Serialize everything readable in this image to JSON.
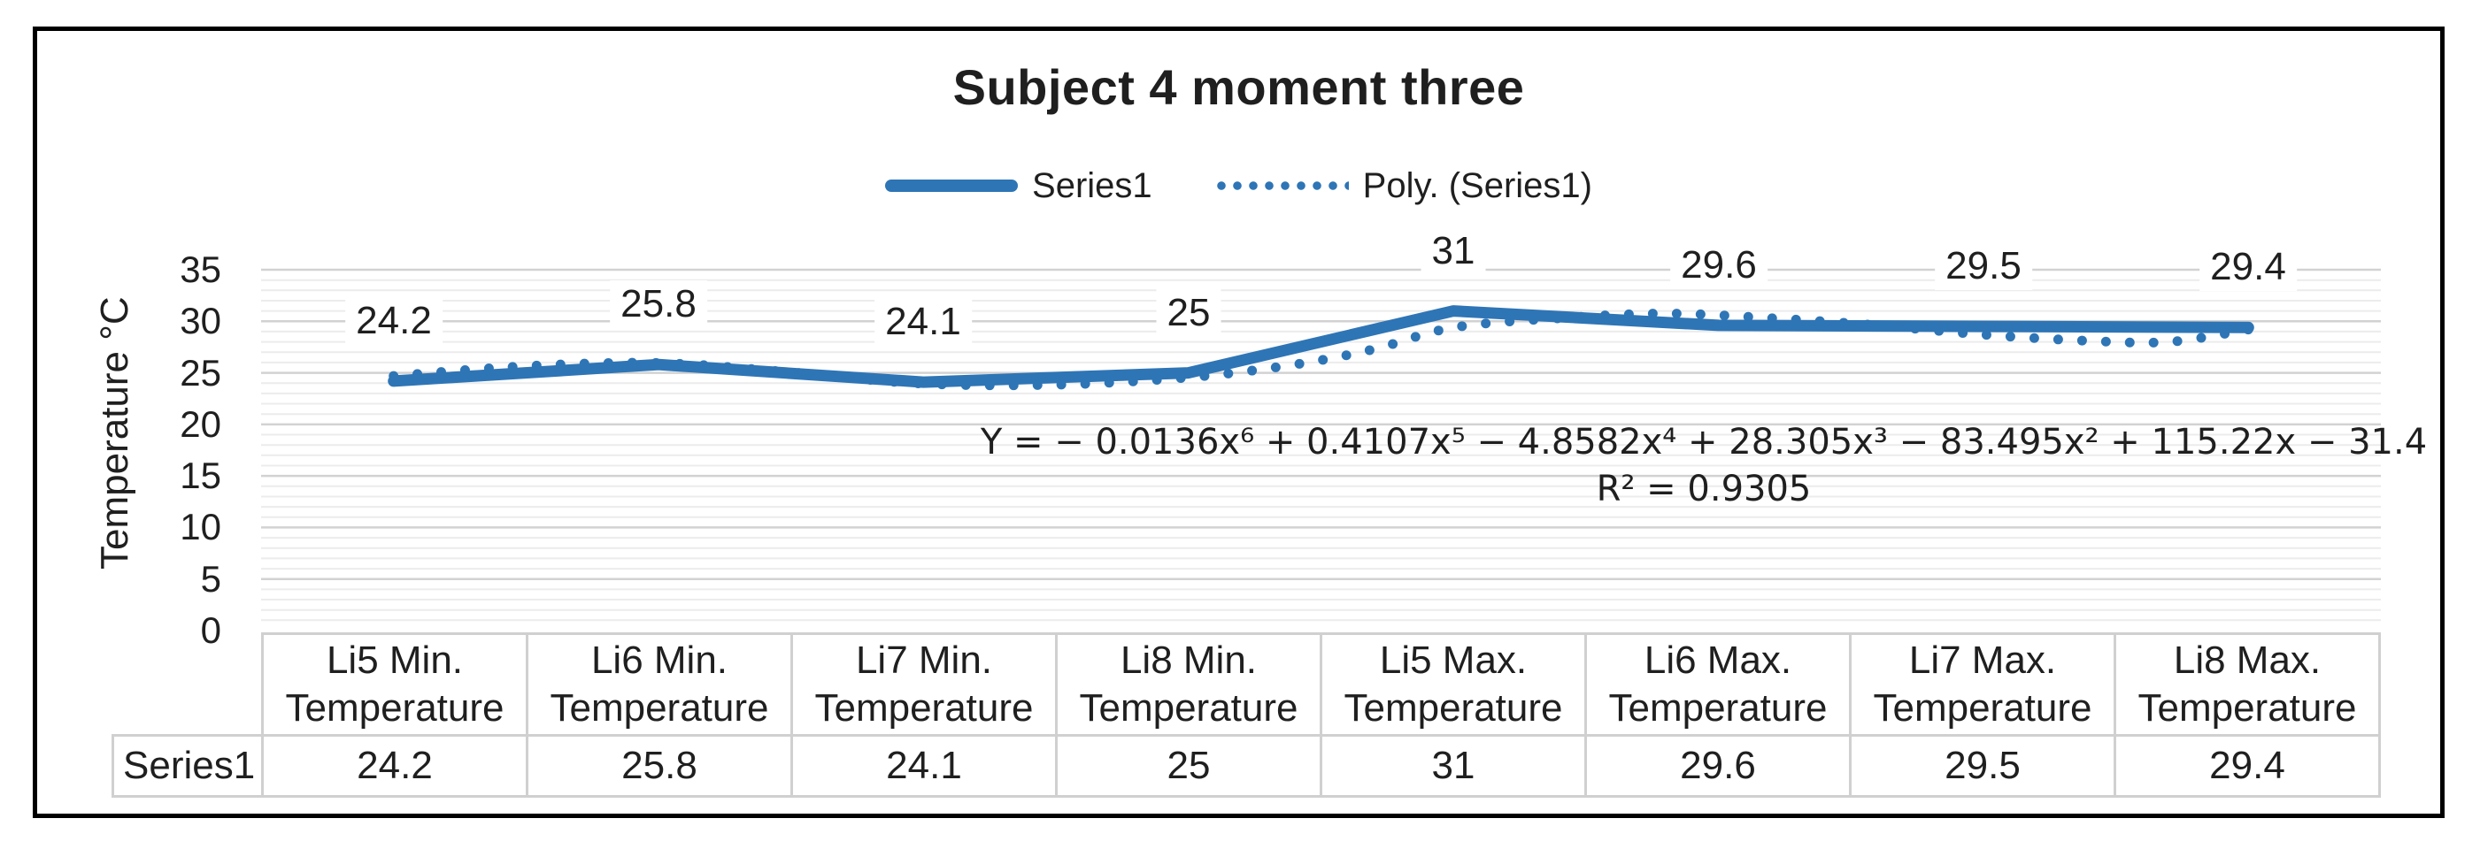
{
  "chart_data": {
    "type": "line",
    "title": "Subject 4 moment three",
    "ylabel": "Temperature °C",
    "xlabel": "",
    "ylim": [
      0,
      35
    ],
    "y_ticks": [
      0,
      5,
      10,
      15,
      20,
      25,
      30,
      35
    ],
    "grid": {
      "major_interval": 5,
      "minor_interval": 1,
      "horizontal_only": true
    },
    "legend_position": "top",
    "categories": [
      "Li5 Min. Temperature",
      "Li6 Min. Temperature",
      "Li7 Min. Temperature",
      "Li8 Min. Temperature",
      "Li5 Max. Temperature",
      "Li6 Max. Temperature",
      "Li7 Max. Temperature",
      "Li8 Max. Temperature"
    ],
    "series": [
      {
        "name": "Series1",
        "values": [
          24.2,
          25.8,
          24.1,
          25,
          31,
          29.6,
          29.5,
          29.4
        ]
      }
    ],
    "data_labels": [
      "24.2",
      "25.8",
      "24.1",
      "25",
      "31",
      "29.6",
      "29.5",
      "29.4"
    ],
    "trendline": {
      "name": "Poly. (Series1)",
      "equation": "Y = − 0.0136x⁶ + 0.4107x⁵ − 4.8582x⁴ + 28.305x³ − 83.495x² + 115.22x − 31.4",
      "r2": "R² = 0.9305",
      "curve_samples": [
        [
          1,
          24.7
        ],
        [
          1.4,
          25.5
        ],
        [
          1.8,
          25.95
        ],
        [
          2.1,
          25.85
        ],
        [
          2.5,
          25.05
        ],
        [
          3,
          23.95
        ],
        [
          3.5,
          23.85
        ],
        [
          4,
          24.55
        ],
        [
          4.4,
          25.8
        ],
        [
          4.7,
          27.3
        ],
        [
          5,
          29.4
        ],
        [
          5.4,
          30.3
        ],
        [
          5.8,
          30.75
        ],
        [
          6.2,
          30.3
        ],
        [
          6.6,
          29.6
        ],
        [
          7,
          28.7
        ],
        [
          7.4,
          28.1
        ],
        [
          7.7,
          28.0
        ],
        [
          8,
          29.2
        ]
      ]
    }
  },
  "legend": [
    {
      "label": "Series1",
      "style": "solid"
    },
    {
      "label": "Poly. (Series1)",
      "style": "dotted"
    }
  ],
  "data_table": {
    "row_label": "Series1",
    "values": [
      "24.2",
      "25.8",
      "24.1",
      "25",
      "31",
      "29.6",
      "29.5",
      "29.4"
    ]
  },
  "colors": {
    "series": "#2E75B6",
    "grid_major": "#D2D2D2",
    "grid_minor": "#ECECEC",
    "text": "#1F1F1F",
    "frame_border": "#000000",
    "table_border": "#D0D0D0"
  }
}
